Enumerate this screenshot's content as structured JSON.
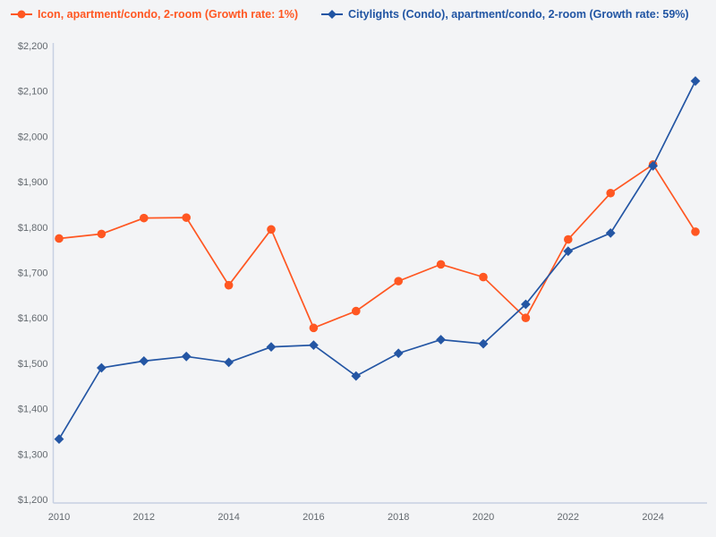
{
  "legend": {
    "items": [
      {
        "id": "icon",
        "label": "Icon, apartment/condo, 2-room (Growth rate: 1%)",
        "color": "#FF5722",
        "marker": "circle"
      },
      {
        "id": "citylights",
        "label": "Citylights (Condo), apartment/condo, 2-room (Growth rate: 59%)",
        "color": "#2155A3",
        "marker": "diamond"
      }
    ]
  },
  "chart_data": {
    "type": "line",
    "x": [
      2010,
      2011,
      2012,
      2013,
      2014,
      2015,
      2016,
      2017,
      2018,
      2019,
      2020,
      2021,
      2022,
      2023,
      2024,
      2025
    ],
    "series": [
      {
        "name": "Icon, apartment/condo, 2-room",
        "growth_rate": "1%",
        "color": "#FF5722",
        "marker": "circle",
        "values": [
          1775,
          1785,
          1820,
          1821,
          1672,
          1795,
          1578,
          1615,
          1681,
          1718,
          1690,
          1600,
          1773,
          1875,
          1938,
          1790
        ]
      },
      {
        "name": "Citylights (Condo), apartment/condo, 2-room",
        "growth_rate": "59%",
        "color": "#2456A4",
        "marker": "diamond",
        "values": [
          1333,
          1490,
          1505,
          1515,
          1502,
          1536,
          1540,
          1472,
          1522,
          1552,
          1543,
          1630,
          1747,
          1787,
          1935,
          2122
        ]
      }
    ],
    "ylim": [
      1200,
      2200
    ],
    "yticks": [
      {
        "value": 1200,
        "label": "$1,200"
      },
      {
        "value": 1300,
        "label": "$1,300"
      },
      {
        "value": 1400,
        "label": "$1,400"
      },
      {
        "value": 1500,
        "label": "$1,500"
      },
      {
        "value": 1600,
        "label": "$1,600"
      },
      {
        "value": 1700,
        "label": "$1,700"
      },
      {
        "value": 1800,
        "label": "$1,800"
      },
      {
        "value": 1900,
        "label": "$1,900"
      },
      {
        "value": 2000,
        "label": "$2,000"
      },
      {
        "value": 2100,
        "label": "$2,100"
      },
      {
        "value": 2200,
        "label": "$2,200"
      }
    ],
    "xticks": [
      {
        "value": 2010,
        "label": "2010"
      },
      {
        "value": 2012,
        "label": "2012"
      },
      {
        "value": 2014,
        "label": "2014"
      },
      {
        "value": 2016,
        "label": "2016"
      },
      {
        "value": 2018,
        "label": "2018"
      },
      {
        "value": 2020,
        "label": "2020"
      },
      {
        "value": 2022,
        "label": "2022"
      },
      {
        "value": 2024,
        "label": "2024"
      }
    ],
    "grid": false,
    "legend_position": "top",
    "title": "",
    "xlabel": "",
    "ylabel": ""
  },
  "colors": {
    "background": "#f3f4f6",
    "axis_line": "#c7d0e2",
    "tick_text": "#63696f"
  }
}
